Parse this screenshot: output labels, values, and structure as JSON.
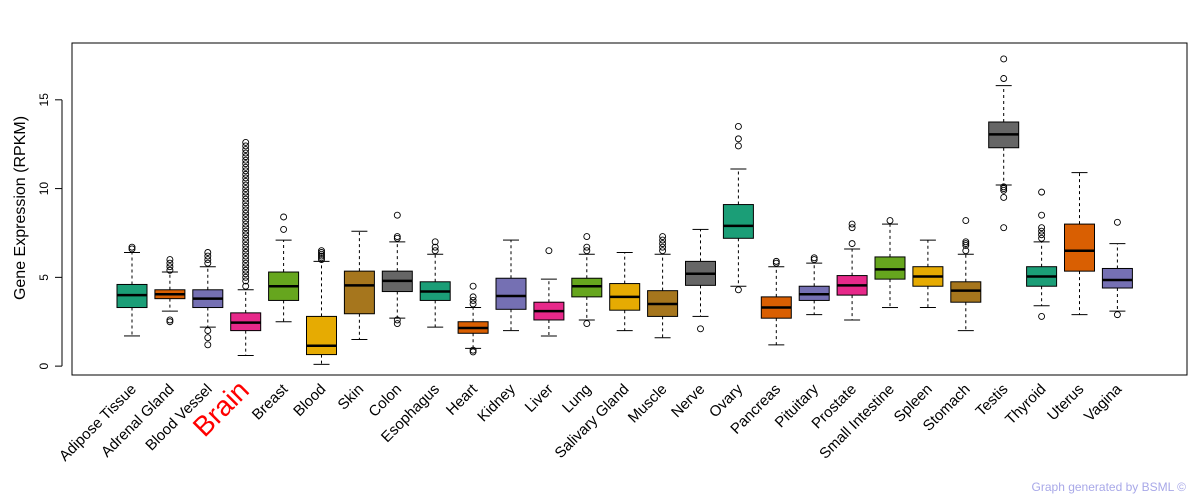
{
  "chart_data": {
    "type": "boxplot",
    "ylabel": "Gene Expression (RPKM)",
    "ylim": [
      -0.5,
      18.2
    ],
    "yticks": [
      0,
      5,
      10,
      15
    ],
    "highlight": "Brain",
    "highlight_color": "#ff0000",
    "series": [
      {
        "name": "Adipose Tissue",
        "color": "#1b9e77",
        "whisker_low": 1.7,
        "q1": 3.3,
        "median": 4.0,
        "q3": 4.6,
        "whisker_high": 6.4,
        "outliers": [
          6.6,
          6.7
        ]
      },
      {
        "name": "Adrenal Gland",
        "color": "#d95f02",
        "whisker_low": 3.1,
        "q1": 3.8,
        "median": 4.05,
        "q3": 4.3,
        "whisker_high": 5.3,
        "outliers": [
          5.4,
          5.6,
          5.8,
          6.0,
          2.6,
          2.5
        ]
      },
      {
        "name": "Blood Vessel",
        "color": "#7570b3",
        "whisker_low": 2.2,
        "q1": 3.3,
        "median": 3.8,
        "q3": 4.3,
        "whisker_high": 5.6,
        "outliers": [
          5.8,
          6.0,
          6.2,
          6.4,
          2.0,
          1.6,
          1.2
        ]
      },
      {
        "name": "Brain",
        "color": "#e7298a",
        "whisker_low": 0.6,
        "q1": 2.0,
        "median": 2.45,
        "q3": 3.0,
        "whisker_high": 4.3,
        "outliers": [
          4.5,
          4.8,
          5.0,
          5.2,
          5.4,
          5.6,
          5.8,
          6.0,
          6.2,
          6.4,
          6.6,
          6.8,
          7.0,
          7.2,
          7.4,
          7.6,
          7.8,
          8.0,
          8.2,
          8.4,
          8.6,
          8.8,
          9.0,
          9.2,
          9.4,
          9.6,
          9.8,
          10.0,
          10.2,
          10.4,
          10.6,
          10.8,
          11.0,
          11.2,
          11.4,
          11.6,
          11.8,
          12.0,
          12.2,
          12.4,
          12.6
        ]
      },
      {
        "name": "Breast",
        "color": "#66a61e",
        "whisker_low": 2.5,
        "q1": 3.7,
        "median": 4.5,
        "q3": 5.3,
        "whisker_high": 7.1,
        "outliers": [
          7.7,
          8.4
        ]
      },
      {
        "name": "Blood",
        "color": "#e6ab02",
        "whisker_low": 0.1,
        "q1": 0.65,
        "median": 1.15,
        "q3": 2.8,
        "whisker_high": 5.9,
        "outliers": [
          6.0,
          6.1,
          6.2,
          6.3,
          6.4,
          6.5
        ]
      },
      {
        "name": "Skin",
        "color": "#a6761d",
        "whisker_low": 1.5,
        "q1": 2.95,
        "median": 4.55,
        "q3": 5.35,
        "whisker_high": 7.6,
        "outliers": []
      },
      {
        "name": "Colon",
        "color": "#666666",
        "whisker_low": 2.7,
        "q1": 4.2,
        "median": 4.8,
        "q3": 5.35,
        "whisker_high": 7.0,
        "outliers": [
          7.2,
          7.3,
          8.5,
          2.6,
          2.4
        ]
      },
      {
        "name": "Esophagus",
        "color": "#1b9e77",
        "whisker_low": 2.2,
        "q1": 3.7,
        "median": 4.2,
        "q3": 4.75,
        "whisker_high": 6.3,
        "outliers": [
          6.5,
          6.7,
          7.0
        ]
      },
      {
        "name": "Heart",
        "color": "#d95f02",
        "whisker_low": 1.0,
        "q1": 1.85,
        "median": 2.15,
        "q3": 2.5,
        "whisker_high": 3.3,
        "outliers": [
          3.5,
          3.7,
          3.9,
          4.5,
          0.9,
          0.8
        ]
      },
      {
        "name": "Kidney",
        "color": "#7570b3",
        "whisker_low": 2.0,
        "q1": 3.2,
        "median": 3.95,
        "q3": 4.95,
        "whisker_high": 7.1,
        "outliers": []
      },
      {
        "name": "Liver",
        "color": "#e7298a",
        "whisker_low": 1.7,
        "q1": 2.6,
        "median": 3.1,
        "q3": 3.6,
        "whisker_high": 4.9,
        "outliers": [
          6.5
        ]
      },
      {
        "name": "Lung",
        "color": "#66a61e",
        "whisker_low": 2.6,
        "q1": 3.9,
        "median": 4.5,
        "q3": 4.95,
        "whisker_high": 6.3,
        "outliers": [
          6.5,
          6.7,
          7.3,
          2.4
        ]
      },
      {
        "name": "Salivary Gland",
        "color": "#e6ab02",
        "whisker_low": 2.0,
        "q1": 3.15,
        "median": 3.9,
        "q3": 4.65,
        "whisker_high": 6.4,
        "outliers": []
      },
      {
        "name": "Muscle",
        "color": "#a6761d",
        "whisker_low": 1.6,
        "q1": 2.8,
        "median": 3.5,
        "q3": 4.25,
        "whisker_high": 6.3,
        "outliers": [
          6.5,
          6.7,
          6.9,
          7.1,
          7.3
        ]
      },
      {
        "name": "Nerve",
        "color": "#666666",
        "whisker_low": 2.8,
        "q1": 4.55,
        "median": 5.2,
        "q3": 5.9,
        "whisker_high": 7.7,
        "outliers": [
          2.1
        ]
      },
      {
        "name": "Ovary",
        "color": "#1b9e77",
        "whisker_low": 4.5,
        "q1": 7.2,
        "median": 7.9,
        "q3": 9.1,
        "whisker_high": 11.1,
        "outliers": [
          12.4,
          12.8,
          13.5,
          4.3
        ]
      },
      {
        "name": "Pancreas",
        "color": "#d95f02",
        "whisker_low": 1.2,
        "q1": 2.7,
        "median": 3.3,
        "q3": 3.9,
        "whisker_high": 5.6,
        "outliers": [
          5.8,
          5.9
        ]
      },
      {
        "name": "Pituitary",
        "color": "#7570b3",
        "whisker_low": 2.9,
        "q1": 3.7,
        "median": 4.05,
        "q3": 4.5,
        "whisker_high": 5.8,
        "outliers": [
          6.0,
          6.1
        ]
      },
      {
        "name": "Prostate",
        "color": "#e7298a",
        "whisker_low": 2.6,
        "q1": 4.0,
        "median": 4.55,
        "q3": 5.1,
        "whisker_high": 6.6,
        "outliers": [
          6.9,
          7.8,
          8.0
        ]
      },
      {
        "name": "Small Intestine",
        "color": "#66a61e",
        "whisker_low": 3.3,
        "q1": 4.9,
        "median": 5.45,
        "q3": 6.15,
        "whisker_high": 8.0,
        "outliers": [
          8.2
        ]
      },
      {
        "name": "Spleen",
        "color": "#e6ab02",
        "whisker_low": 3.3,
        "q1": 4.5,
        "median": 5.05,
        "q3": 5.6,
        "whisker_high": 7.1,
        "outliers": []
      },
      {
        "name": "Stomach",
        "color": "#a6761d",
        "whisker_low": 2.0,
        "q1": 3.6,
        "median": 4.25,
        "q3": 4.75,
        "whisker_high": 6.3,
        "outliers": [
          6.5,
          6.8,
          6.9,
          7.0,
          8.2
        ]
      },
      {
        "name": "Testis",
        "color": "#666666",
        "whisker_low": 10.2,
        "q1": 12.3,
        "median": 13.05,
        "q3": 13.75,
        "whisker_high": 15.8,
        "outliers": [
          16.2,
          17.3,
          10.1,
          10.0,
          9.9,
          9.5,
          7.8
        ]
      },
      {
        "name": "Thyroid",
        "color": "#1b9e77",
        "whisker_low": 3.4,
        "q1": 4.5,
        "median": 5.05,
        "q3": 5.6,
        "whisker_high": 7.0,
        "outliers": [
          7.2,
          7.4,
          7.6,
          7.8,
          8.5,
          9.8,
          2.8
        ]
      },
      {
        "name": "Uterus",
        "color": "#d95f02",
        "whisker_low": 2.9,
        "q1": 5.35,
        "median": 6.5,
        "q3": 8.0,
        "whisker_high": 10.9,
        "outliers": []
      },
      {
        "name": "Vagina",
        "color": "#7570b3",
        "whisker_low": 3.1,
        "q1": 4.4,
        "median": 4.85,
        "q3": 5.5,
        "whisker_high": 6.9,
        "outliers": [
          8.1,
          2.9
        ]
      }
    ]
  },
  "footer": {
    "text": "Graph generated by BSML ©"
  }
}
